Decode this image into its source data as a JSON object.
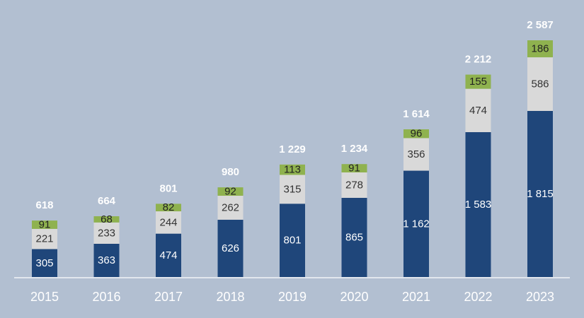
{
  "chart_data": {
    "type": "bar",
    "stacked": true,
    "categories": [
      "2015",
      "2016",
      "2017",
      "2018",
      "2019",
      "2020",
      "2021",
      "2022",
      "2023"
    ],
    "series": [
      {
        "values": [
          305,
          363,
          474,
          626,
          801,
          865,
          1162,
          1583,
          1815
        ],
        "color": "#1f467a",
        "labels": [
          "305",
          "363",
          "474",
          "626",
          "801",
          "865",
          "1 162",
          "1 583",
          "1 815"
        ],
        "label_color": "#ffffff"
      },
      {
        "values": [
          221,
          233,
          244,
          262,
          315,
          278,
          356,
          474,
          586
        ],
        "color": "#d9d9d9",
        "labels": [
          "221",
          "233",
          "244",
          "262",
          "315",
          "278",
          "356",
          "474",
          "586"
        ],
        "label_color": "#333333"
      },
      {
        "values": [
          91,
          68,
          82,
          92,
          113,
          91,
          96,
          155,
          186
        ],
        "color": "#8fb24f",
        "labels": [
          "91",
          "68",
          "82",
          "92",
          "113",
          "91",
          "96",
          "155",
          "186"
        ],
        "label_color": "#222222"
      }
    ],
    "totals": [
      "618",
      "664",
      "801",
      "980",
      "1 229",
      "1 234",
      "1 614",
      "2 212",
      "2 587"
    ],
    "ylim": [
      0,
      2587
    ],
    "grid": false,
    "legend": "none",
    "background": "#b2bfd1",
    "axis_color": "#ffffff"
  }
}
